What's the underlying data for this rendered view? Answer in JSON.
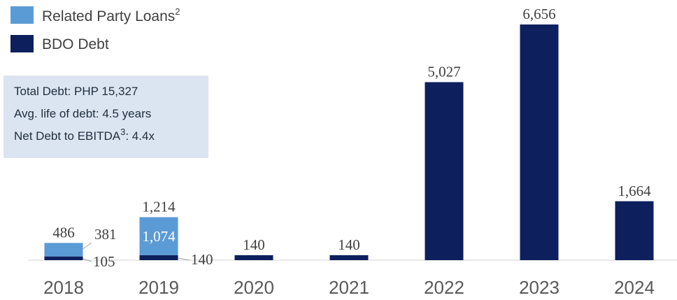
{
  "chart_data": {
    "type": "bar",
    "stacked": true,
    "categories": [
      "2018",
      "2019",
      "2020",
      "2021",
      "2022",
      "2023",
      "2024"
    ],
    "series": [
      {
        "name": "Related Party Loans",
        "name_sup": "2",
        "color": "#5b9bd5",
        "values": [
          381,
          1074,
          0,
          0,
          0,
          0,
          0
        ]
      },
      {
        "name": "BDO Debt",
        "name_sup": "",
        "color": "#0d1f5c",
        "values": [
          105,
          140,
          140,
          140,
          5027,
          6656,
          1664
        ]
      }
    ],
    "totals": [
      "486",
      "1,214",
      "140",
      "140",
      "5,027",
      "6,656",
      "1,664"
    ],
    "segment_labels": {
      "related": [
        "381",
        "1,074"
      ],
      "bdo": [
        "105",
        "140"
      ]
    },
    "info_box": {
      "lines": [
        {
          "text": "Total Debt: PHP 15,327",
          "sup": "",
          "suffix": ""
        },
        {
          "text": "Avg. life of debt: 4.5 years",
          "sup": "",
          "suffix": ""
        },
        {
          "text": "Net Debt to EBITDA",
          "sup": "3",
          "suffix": ": 4.4x"
        }
      ],
      "background": "#dbe5f1"
    },
    "legend_position": "top-left",
    "grid": false,
    "ylim": [
      0,
      6656
    ]
  }
}
